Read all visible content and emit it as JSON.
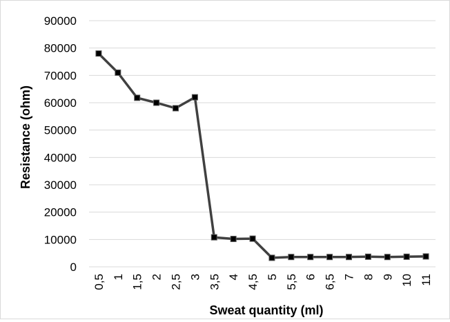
{
  "chart_data": {
    "type": "line",
    "title": "",
    "xlabel": "Sweat quantity (ml)",
    "ylabel": "Resistance (ohm)",
    "categories": [
      "0,5",
      "1",
      "1,5",
      "2",
      "2,5",
      "3",
      "3,5",
      "4",
      "4,5",
      "5",
      "5,5",
      "6",
      "6,5",
      "7",
      "8",
      "9",
      "10",
      "11"
    ],
    "series": [
      {
        "name": "",
        "values": [
          78000,
          71000,
          61800,
          60000,
          58000,
          62000,
          10800,
          10200,
          10300,
          3300,
          3600,
          3600,
          3600,
          3600,
          3700,
          3600,
          3700,
          3800
        ]
      }
    ],
    "ylim": [
      0,
      90000
    ],
    "yticks": [
      "0",
      "10000",
      "20000",
      "30000",
      "40000",
      "50000",
      "60000",
      "70000",
      "80000",
      "90000"
    ],
    "grid": "horizontal",
    "legend": "none",
    "colors": {
      "line": "#404040",
      "marker": "#000000",
      "grid": "#d9d9d9"
    }
  }
}
